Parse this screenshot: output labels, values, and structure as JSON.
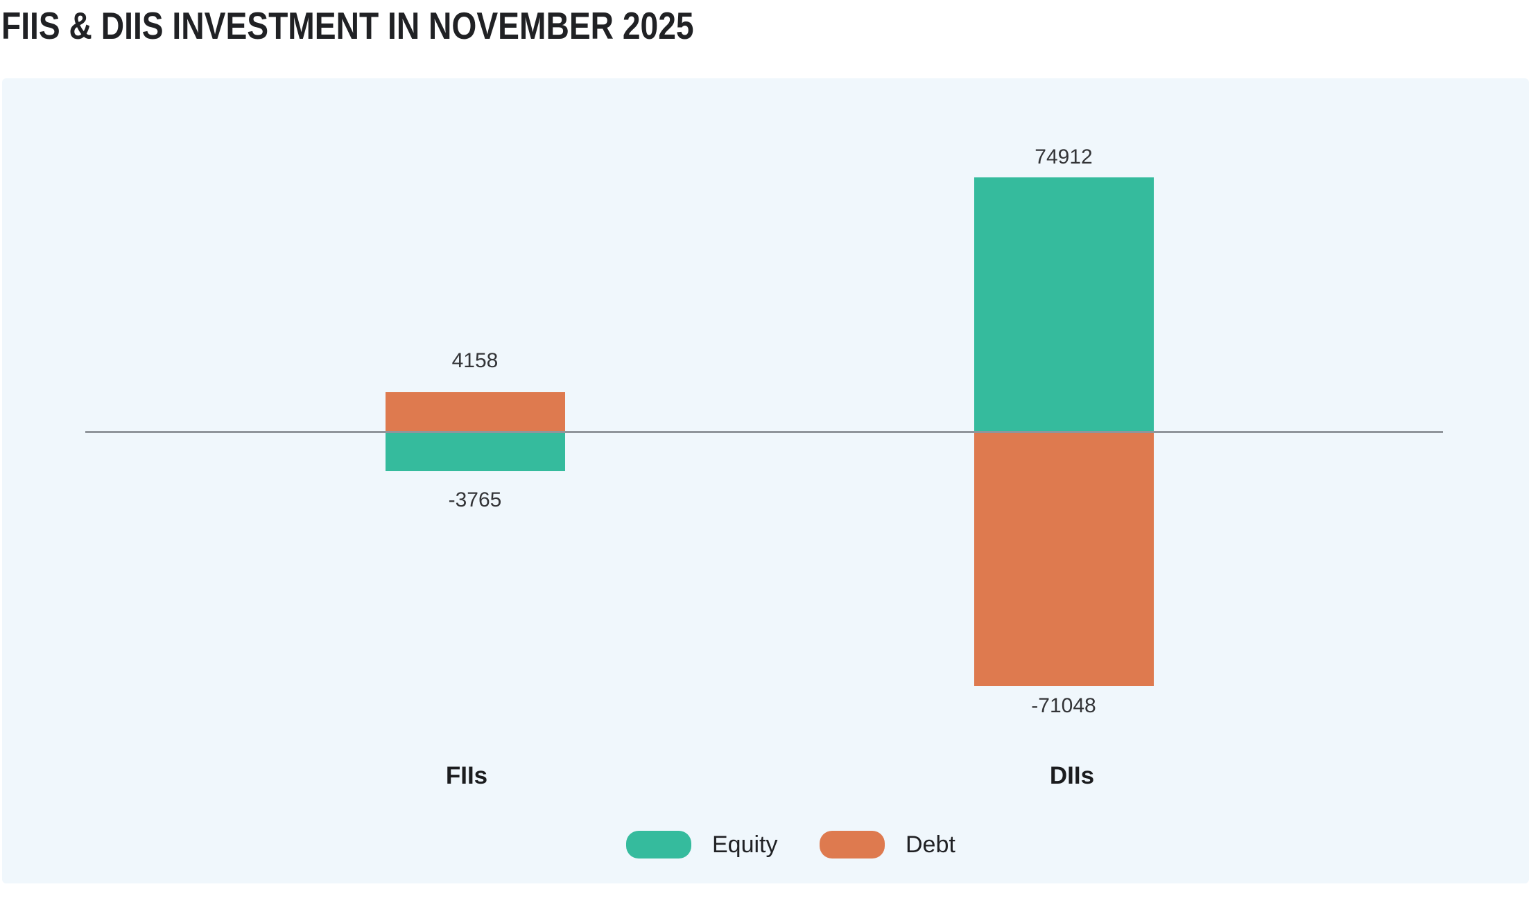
{
  "header": {
    "title": "FIIS & DIIS INVESTMENT IN NOVEMBER 2025"
  },
  "colors": {
    "equity": "#35BB9D",
    "debt": "#DE7A4F",
    "panel_background": "#F0F7FC",
    "axis_line": "#90959B",
    "title_text": "#202124",
    "value_label_text": "#333437",
    "category_label_text": "#1B1C1E"
  },
  "chart_data": {
    "type": "bar",
    "title": "FIIS & DIIS INVESTMENT IN NOVEMBER 2025",
    "categories": [
      "FIIs",
      "DIIs"
    ],
    "series": [
      {
        "name": "Equity",
        "color": "#35BB9D",
        "values": [
          -3765,
          74912
        ]
      },
      {
        "name": "Debt",
        "color": "#DE7A4F",
        "values": [
          4158,
          -71048
        ]
      }
    ],
    "xlabel": "",
    "ylabel": "",
    "baseline": 0,
    "grid": false,
    "y_axis_shown": false,
    "value_labels_shown": true,
    "legend_position": "bottom"
  }
}
